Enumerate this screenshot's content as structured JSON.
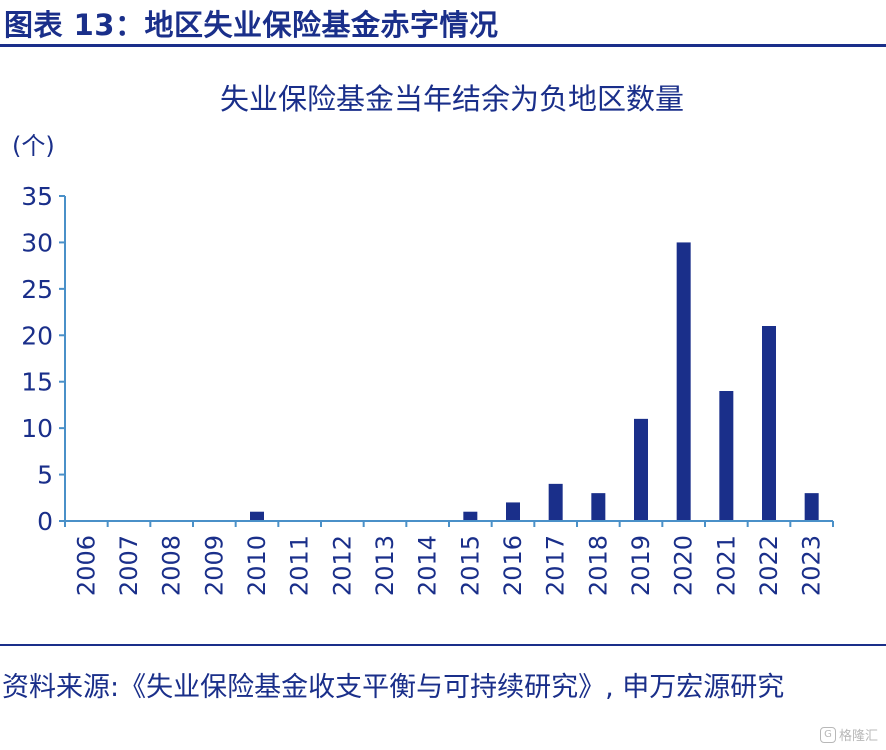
{
  "figure_title": "图表 13：地区失业保险基金赤字情况",
  "source_text": "资料来源:《失业保险基金收支平衡与可持续研究》, 申万宏源研究",
  "watermark": {
    "icon": "G",
    "text": "格隆汇"
  },
  "colors": {
    "bar": "#1a2f8a",
    "axis": "#4a90c8",
    "text": "#1a2f8a"
  },
  "chart_data": {
    "type": "bar",
    "title": "失业保险基金当年结余为负地区数量",
    "unit_label": "(个)",
    "xlabel": "",
    "ylabel": "",
    "categories": [
      "2006",
      "2007",
      "2008",
      "2009",
      "2010",
      "2011",
      "2012",
      "2013",
      "2014",
      "2015",
      "2016",
      "2017",
      "2018",
      "2019",
      "2020",
      "2021",
      "2022",
      "2023"
    ],
    "values": [
      0,
      0,
      0,
      0,
      1,
      0,
      0,
      0,
      0,
      1,
      2,
      4,
      3,
      11,
      30,
      14,
      21,
      3
    ],
    "ylim": [
      0,
      35
    ],
    "yticks": [
      0,
      5,
      10,
      15,
      20,
      25,
      30,
      35
    ],
    "grid": false,
    "legend": "none"
  }
}
